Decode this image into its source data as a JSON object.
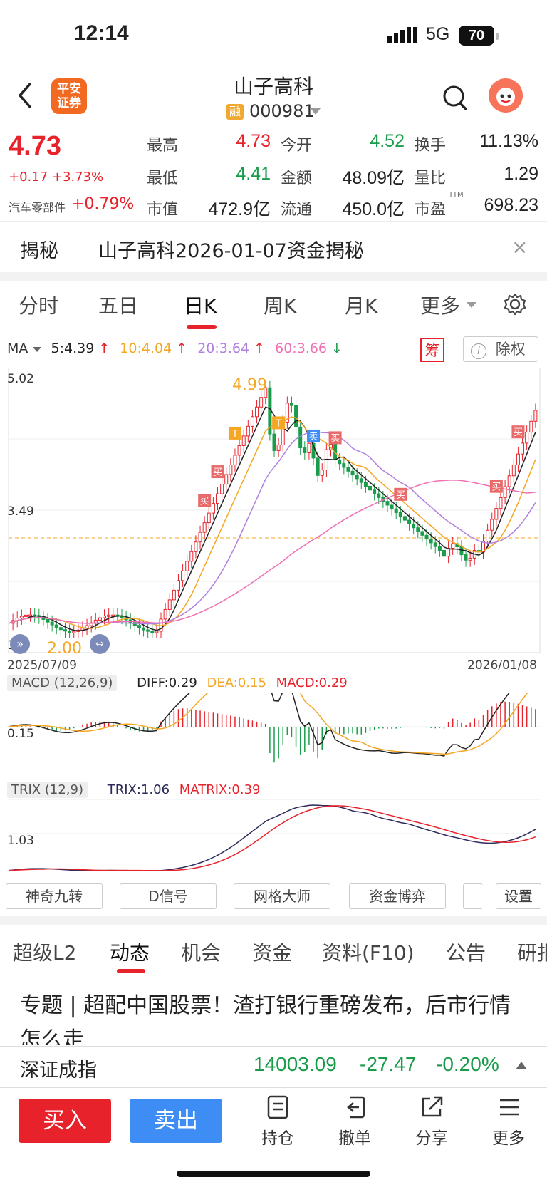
{
  "status": {
    "time": "12:14",
    "network": "5G",
    "battery": "70"
  },
  "header": {
    "logo_text": "平安证券",
    "stock_name": "山子高科",
    "rong_badge": "融",
    "code": "000981"
  },
  "quote": {
    "price": "4.73",
    "change": "+0.17 +3.73%",
    "sector": "汽车零部件",
    "sector_change": "+0.79%",
    "fields": [
      {
        "label": "最高",
        "value": "4.73",
        "color": "red"
      },
      {
        "label": "今开",
        "value": "4.52",
        "color": "green"
      },
      {
        "label": "换手",
        "value": "11.13%",
        "color": "black"
      },
      {
        "label": "最低",
        "value": "4.41",
        "color": "green"
      },
      {
        "label": "金额",
        "value": "48.09亿",
        "color": "black"
      },
      {
        "label": "量比",
        "value": "1.29",
        "color": "black"
      },
      {
        "label": "市值",
        "value": "472.9亿",
        "color": "black"
      },
      {
        "label": "流通",
        "value": "450.0亿",
        "color": "black"
      },
      {
        "label": "市盈",
        "value": "698.23",
        "color": "black"
      }
    ],
    "pe_sup": "TTM"
  },
  "reveal": {
    "label": "揭秘",
    "title": "山子高科2026-01-07资金揭秘",
    "close": "×"
  },
  "period_tabs": [
    "分时",
    "五日",
    "日K",
    "周K",
    "月K",
    "更多"
  ],
  "active_period": "日K",
  "ma": {
    "label": "MA",
    "ma5": "5:4.39",
    "ma10": "10:4.04",
    "ma20": "20:3.64",
    "ma60": "60:3.66"
  },
  "chart_controls": {
    "chou": "筹",
    "chuquan": "除权"
  },
  "kline": {
    "y_top": "5.02",
    "y_mid": "3.49",
    "y_low": "1.7",
    "high_marker": "4.99",
    "low_marker": "2.00",
    "date_start": "2025/07/09",
    "date_end": "2026/01/08",
    "marker_buy": "买",
    "marker_sell": "卖",
    "marker_t": "T"
  },
  "macd": {
    "title": "MACD (12,26,9)",
    "diff": "DIFF:0.29",
    "dea": "DEA:0.15",
    "macd": "MACD:0.29",
    "y_label": "0.15"
  },
  "trix": {
    "title": "TRIX (12,9)",
    "trix": "TRIX:1.06",
    "matrix": "MATRIX:0.39",
    "y_label": "1.03"
  },
  "tools": [
    "神奇九转",
    "D信号",
    "网格大师",
    "资金博弈",
    "",
    "设置"
  ],
  "news_tabs": [
    "超级L2",
    "动态",
    "机会",
    "资金",
    "资料(F10)",
    "公告",
    "研报"
  ],
  "active_news_tab": "动态",
  "news_headline": "专题 | 超配中国股票！渣打银行重磅发布，后市行情怎么走",
  "index": {
    "name": "深证成指",
    "value": "14003.09",
    "change": "-27.47",
    "pct": "-0.20%"
  },
  "bottom": {
    "buy": "买入",
    "sell": "卖出",
    "actions": [
      "持仓",
      "撤单",
      "分享",
      "更多"
    ]
  },
  "colors": {
    "up": "#e8222b",
    "down": "#1a9c4a",
    "ma5": "#222222",
    "ma10": "#f5a623",
    "ma20": "#b07fe0",
    "ma60": "#f06fb4",
    "diff": "#222222",
    "dea": "#f5a623",
    "trix": "#2c2c5a",
    "matrix": "#e8222b"
  }
}
